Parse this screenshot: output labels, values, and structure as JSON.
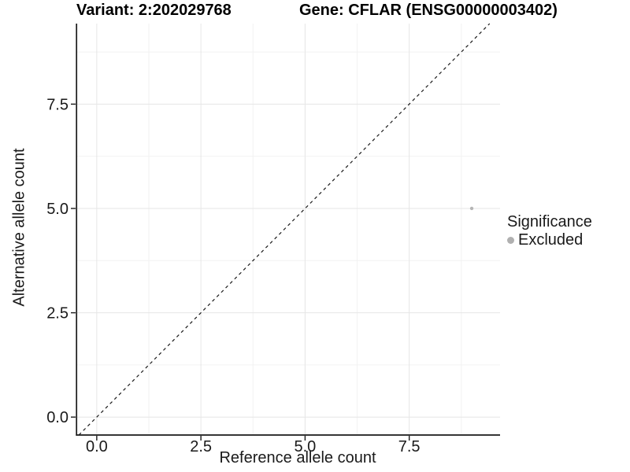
{
  "chart_data": {
    "type": "scatter",
    "title_left": "Variant: 2:202029768",
    "title_right": "Gene: CFLAR (ENSG00000003402)",
    "xlabel": "Reference allele count",
    "ylabel": "Alternative allele count",
    "xlim": [
      -0.47,
      9.68
    ],
    "ylim": [
      -0.43,
      9.43
    ],
    "x_tick_values": [
      0,
      2.5,
      5,
      7.5
    ],
    "x_tick_labels": [
      "0.0",
      "2.5",
      "5.0",
      "7.5"
    ],
    "y_tick_values": [
      0,
      2.5,
      5,
      7.5
    ],
    "y_tick_labels": [
      "0.0",
      "2.5",
      "5.0",
      "7.5"
    ],
    "minor_tick_values": [
      1.25,
      3.75,
      6.25,
      8.75
    ],
    "grid": "major+minor",
    "reference_line": {
      "type": "identity",
      "slope": 1,
      "intercept": 0,
      "style": "dashed"
    },
    "series": [
      {
        "name": "Excluded",
        "marker": "circle",
        "point_radius": 2.2,
        "points": [
          {
            "x": 9,
            "y": 5
          }
        ]
      }
    ],
    "legend": {
      "title": "Significance",
      "position": "right",
      "entries": [
        {
          "label": "Excluded",
          "color": "#b0b0b0",
          "marker": "circle"
        }
      ]
    }
  },
  "colors": {
    "background": "#ffffff",
    "grid_major": "#e6e6e6",
    "grid_minor": "#f2f2f2",
    "axis_line": "#1a1a1a",
    "axis_text": "#1a1a1a",
    "title_text": "#000000",
    "reference_line": "#1a1a1a",
    "point": "#b5b5b5",
    "legend_marker": "#b0b0b0"
  }
}
